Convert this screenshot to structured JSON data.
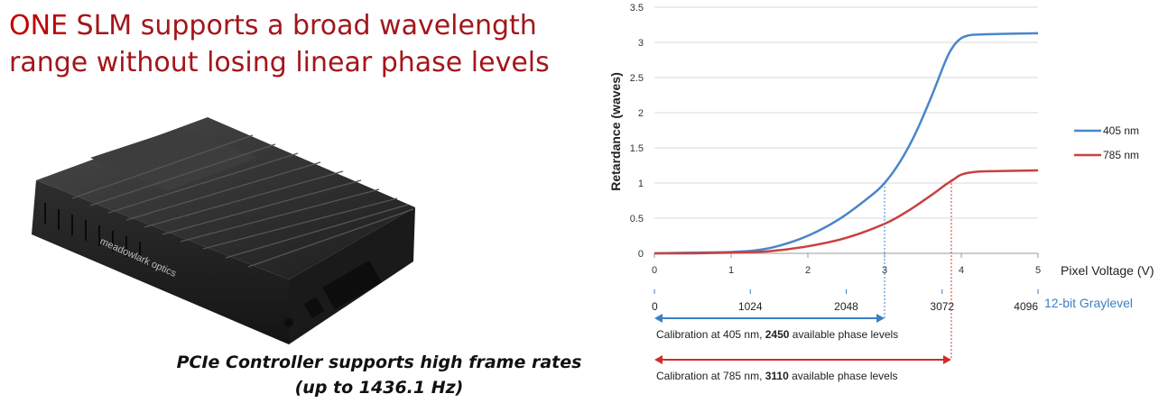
{
  "headline": {
    "emphasis": "ONE",
    "line1_rest": " SLM supports a broad wavelength",
    "line2": "range without losing linear phase levels"
  },
  "device": {
    "brand_text": "meadowlark optics",
    "colors": {
      "body": "#1e1e1e",
      "fin": "#2b2b2b",
      "top": "#3a3a3a"
    }
  },
  "caption": {
    "line1": "PCIe Controller supports high frame rates",
    "line2": "(up to 1436.1 Hz)"
  },
  "chart_data": {
    "type": "line",
    "xlabel": "Pixel Voltage (V)",
    "ylabel": "Retardance (waves)",
    "xlim": [
      0,
      5
    ],
    "ylim": [
      0,
      3.5
    ],
    "x_ticks": [
      "0",
      "1",
      "2",
      "3",
      "4",
      "5"
    ],
    "y_ticks": [
      "0",
      "0.5",
      "1",
      "1.5",
      "2",
      "2.5",
      "3",
      "3.5"
    ],
    "grid": "horizontal",
    "legend_position": "right",
    "series": [
      {
        "name": "405 nm",
        "color": "#4a86c8",
        "x": [
          0,
          0.5,
          1.0,
          1.3,
          1.6,
          2.0,
          2.4,
          2.8,
          3.0,
          3.2,
          3.4,
          3.6,
          3.8,
          3.9,
          4.0,
          4.1,
          4.2,
          4.5,
          5.0
        ],
        "y": [
          0,
          0.01,
          0.02,
          0.04,
          0.1,
          0.25,
          0.48,
          0.8,
          1.0,
          1.3,
          1.7,
          2.2,
          2.75,
          2.95,
          3.06,
          3.1,
          3.11,
          3.12,
          3.13
        ]
      },
      {
        "name": "785 nm",
        "color": "#c8413f",
        "x": [
          0,
          0.5,
          1.0,
          1.5,
          2.0,
          2.5,
          3.0,
          3.3,
          3.6,
          3.8,
          3.9,
          4.0,
          4.2,
          4.5,
          5.0
        ],
        "y": [
          0,
          0.0,
          0.01,
          0.03,
          0.1,
          0.22,
          0.42,
          0.6,
          0.82,
          0.98,
          1.05,
          1.12,
          1.16,
          1.17,
          1.18
        ]
      }
    ],
    "graylevel": {
      "label": "12-bit Graylevel",
      "ticks": [
        {
          "label": "0",
          "voltage": 0
        },
        {
          "label": "1024",
          "voltage": 1.25
        },
        {
          "label": "2048",
          "voltage": 2.5
        },
        {
          "label": "3072",
          "voltage": 3.75
        },
        {
          "label": "4096",
          "voltage": 5
        }
      ]
    },
    "calibrations": [
      {
        "prefix": "Calibration  at 405 nm, ",
        "bold": "2450",
        "suffix": " available phase levels",
        "voltage": 3.0,
        "color": "#3b7fc4"
      },
      {
        "prefix": "Calibration at 785 nm, ",
        "bold": "3110",
        "suffix": " available phase levels",
        "voltage": 3.87,
        "color": "#d22b2b"
      }
    ]
  }
}
